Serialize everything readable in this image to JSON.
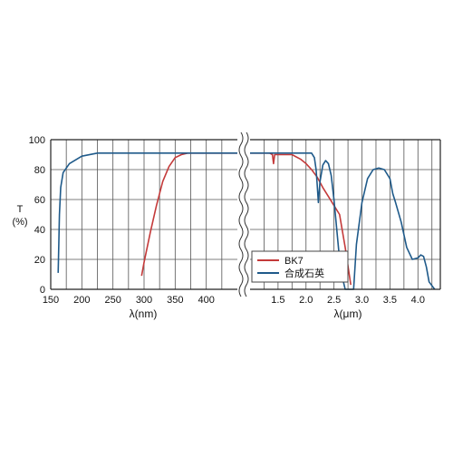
{
  "chart_data": {
    "type": "line",
    "y_axis": {
      "label_line1": "T",
      "label_line2": "(%)",
      "ticks": [
        "0",
        "20",
        "40",
        "60",
        "80",
        "100"
      ],
      "tick_values": [
        0,
        20,
        40,
        60,
        80,
        100
      ],
      "range": [
        0,
        100
      ]
    },
    "x_axis_left": {
      "label": "λ(nm)",
      "range": [
        150,
        450
      ],
      "ticks": [
        "150",
        "200",
        "250",
        "300",
        "350",
        "400"
      ],
      "tick_values": [
        150,
        200,
        250,
        300,
        350,
        400
      ]
    },
    "x_axis_right": {
      "label": "λ(μm)",
      "range": [
        1.0,
        4.4
      ],
      "ticks": [
        "1.5",
        "2.0",
        "2.5",
        "3.0",
        "3.5",
        "4.0"
      ],
      "tick_values": [
        1.5,
        2.0,
        2.5,
        3.0,
        3.5,
        4.0
      ]
    },
    "grid": true,
    "axis_break": true,
    "legend": {
      "placement": "lower-right",
      "entries": [
        {
          "label": "BK7",
          "color": "#c43a3a"
        },
        {
          "label": "合成石英",
          "color": "#1f5a8a"
        }
      ]
    },
    "series": [
      {
        "name": "BK7",
        "color": "#c43a3a",
        "left": [
          [
            296,
            9
          ],
          [
            300,
            18
          ],
          [
            310,
            38
          ],
          [
            320,
            56
          ],
          [
            330,
            72
          ],
          [
            340,
            82
          ],
          [
            350,
            88
          ],
          [
            360,
            90
          ],
          [
            370,
            91
          ],
          [
            400,
            91
          ],
          [
            420,
            91
          ],
          [
            450,
            91
          ]
        ],
        "right": [
          [
            1.0,
            91
          ],
          [
            1.25,
            91
          ],
          [
            1.35,
            91
          ],
          [
            1.4,
            90
          ],
          [
            1.42,
            84
          ],
          [
            1.44,
            90
          ],
          [
            1.6,
            90
          ],
          [
            1.75,
            90
          ],
          [
            1.9,
            87
          ],
          [
            2.0,
            84
          ],
          [
            2.1,
            80
          ],
          [
            2.2,
            75
          ],
          [
            2.3,
            68
          ],
          [
            2.4,
            62
          ],
          [
            2.5,
            56
          ],
          [
            2.6,
            50
          ],
          [
            2.7,
            28
          ],
          [
            2.8,
            3
          ]
        ]
      },
      {
        "name": "合成石英",
        "color": "#1f5a8a",
        "left": [
          [
            162,
            11
          ],
          [
            163,
            30
          ],
          [
            164,
            50
          ],
          [
            166,
            68
          ],
          [
            170,
            78
          ],
          [
            180,
            84
          ],
          [
            200,
            89
          ],
          [
            225,
            91
          ],
          [
            250,
            91
          ],
          [
            300,
            91
          ],
          [
            350,
            91
          ],
          [
            400,
            91
          ],
          [
            450,
            91
          ]
        ],
        "right": [
          [
            1.0,
            91
          ],
          [
            1.5,
            91
          ],
          [
            2.0,
            91
          ],
          [
            2.1,
            91
          ],
          [
            2.15,
            88
          ],
          [
            2.18,
            80
          ],
          [
            2.2,
            70
          ],
          [
            2.22,
            58
          ],
          [
            2.25,
            72
          ],
          [
            2.3,
            83
          ],
          [
            2.35,
            86
          ],
          [
            2.4,
            84
          ],
          [
            2.45,
            76
          ],
          [
            2.5,
            60
          ],
          [
            2.55,
            40
          ],
          [
            2.6,
            20
          ],
          [
            2.65,
            8
          ],
          [
            2.7,
            0
          ],
          [
            2.85,
            0
          ],
          [
            2.9,
            30
          ],
          [
            3.0,
            58
          ],
          [
            3.1,
            74
          ],
          [
            3.2,
            80
          ],
          [
            3.3,
            81
          ],
          [
            3.4,
            80
          ],
          [
            3.5,
            74
          ],
          [
            3.55,
            64
          ],
          [
            3.6,
            58
          ],
          [
            3.7,
            45
          ],
          [
            3.8,
            28
          ],
          [
            3.9,
            20
          ],
          [
            4.0,
            21
          ],
          [
            4.05,
            23
          ],
          [
            4.1,
            22
          ],
          [
            4.15,
            15
          ],
          [
            4.2,
            5
          ],
          [
            4.3,
            0
          ]
        ]
      }
    ]
  }
}
